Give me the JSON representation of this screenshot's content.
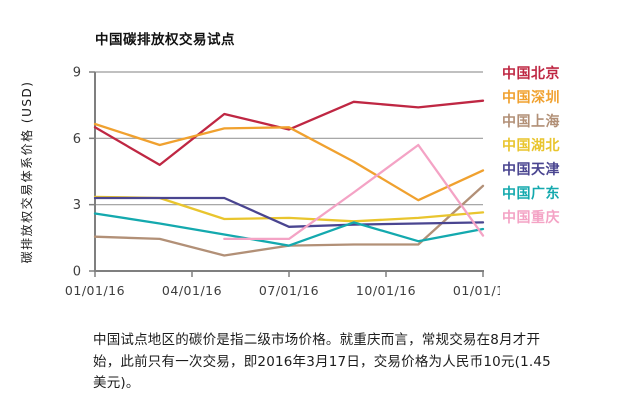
{
  "title": "中国碳排放权交易试点",
  "caption": "中国试点地区的碳价是指二级市场价格。就重庆而言，常规交易在8月才开始，此前只有一次交易，即2016年3月17日，交易价格为人民币10元(1.45美元)。",
  "chart_data": {
    "type": "line",
    "title": "中国碳排放权交易试点",
    "xlabel": "",
    "ylabel": "碳排放权交易体系价格 (USD)",
    "ylim": [
      0,
      9
    ],
    "yticks": [
      0,
      3,
      6,
      9
    ],
    "grid": "horizontal gridlines at 3, 6, 9",
    "legend_position": "right",
    "x_axis_note": "x in months since 01/01/16, range 0-12",
    "xtick_months": [
      0,
      3,
      6,
      9,
      12
    ],
    "xticklabels": [
      "01/01/16",
      "04/01/16",
      "07/01/16",
      "10/01/16",
      "01/01/17"
    ],
    "series": [
      {
        "name": "中国北京",
        "color": "#bf2743",
        "x": [
          0,
          2,
          4,
          6,
          8,
          10,
          12
        ],
        "values": [
          6.5,
          4.8,
          7.1,
          6.4,
          7.65,
          7.4,
          7.7
        ]
      },
      {
        "name": "中国深圳",
        "color": "#f0a12f",
        "x": [
          0,
          2,
          4,
          6,
          8,
          10,
          12
        ],
        "values": [
          6.65,
          5.7,
          6.45,
          6.5,
          4.95,
          3.2,
          4.55
        ]
      },
      {
        "name": "中国上海",
        "color": "#b29077",
        "x": [
          0,
          2,
          4,
          6,
          8,
          10,
          12
        ],
        "values": [
          1.55,
          1.45,
          0.7,
          1.15,
          1.2,
          1.2,
          3.85
        ]
      },
      {
        "name": "中国湖北",
        "color": "#e9c52e",
        "x": [
          0,
          2,
          4,
          6,
          8,
          10,
          12
        ],
        "values": [
          3.35,
          3.3,
          2.35,
          2.4,
          2.25,
          2.4,
          2.65
        ]
      },
      {
        "name": "中国天津",
        "color": "#4a4590",
        "x": [
          0,
          2,
          4,
          6,
          8,
          10,
          12
        ],
        "values": [
          3.3,
          3.3,
          3.3,
          2.0,
          2.1,
          2.15,
          2.2
        ]
      },
      {
        "name": "中国广东",
        "color": "#14a9ae",
        "x": [
          0,
          2,
          4,
          6,
          8,
          10,
          12
        ],
        "values": [
          2.6,
          2.15,
          1.65,
          1.15,
          2.2,
          1.35,
          1.9
        ]
      },
      {
        "name": "中国重庆",
        "color": "#f4a3c5",
        "x": [
          4,
          6,
          8,
          10,
          12
        ],
        "values": [
          1.45,
          1.45,
          3.55,
          5.7,
          1.6
        ]
      }
    ]
  },
  "colors": {
    "gridline": "#9b9b9b",
    "axis": "#7f7f7f",
    "tick_label": "#3d3d3d"
  }
}
